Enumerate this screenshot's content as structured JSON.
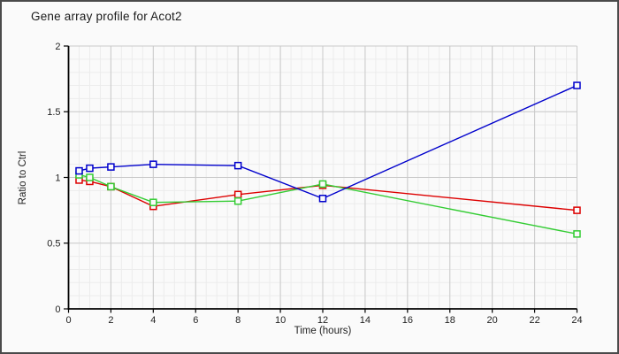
{
  "window": {
    "background": "#fafafa",
    "border_color": "#4a4a4a"
  },
  "chart_data": {
    "type": "line",
    "title": "Gene array profile for Acot2",
    "xlabel": "Time (hours)",
    "ylabel": "Ratio to Ctrl",
    "xlim": [
      0,
      24
    ],
    "ylim": [
      0,
      2
    ],
    "x_major_ticks": [
      0,
      2,
      4,
      6,
      8,
      10,
      12,
      14,
      16,
      18,
      20,
      22,
      24
    ],
    "y_major_ticks": [
      0,
      0.5,
      1,
      1.5,
      2
    ],
    "x_minor_step": 0.5,
    "y_minor_step": 0.1,
    "grid": true,
    "legend_position": "none",
    "marker": "open-square",
    "x": [
      0.5,
      1,
      2,
      4,
      8,
      12,
      24
    ],
    "series": [
      {
        "name": "series-red",
        "color": "#dd0000",
        "values": [
          0.98,
          0.97,
          0.93,
          0.78,
          0.87,
          0.94,
          0.75
        ]
      },
      {
        "name": "series-green",
        "color": "#33cc33",
        "values": [
          1.02,
          1.0,
          0.93,
          0.81,
          0.82,
          0.95,
          0.57
        ]
      },
      {
        "name": "series-blue",
        "color": "#0000cc",
        "values": [
          1.05,
          1.07,
          1.08,
          1.1,
          1.09,
          0.84,
          1.7
        ]
      }
    ],
    "style": {
      "axis_color": "#000000",
      "major_grid_color": "#c9c9c9",
      "minor_grid_color": "#ececec",
      "tick_label_color": "#222222",
      "plot_background": "#fafafa"
    }
  }
}
